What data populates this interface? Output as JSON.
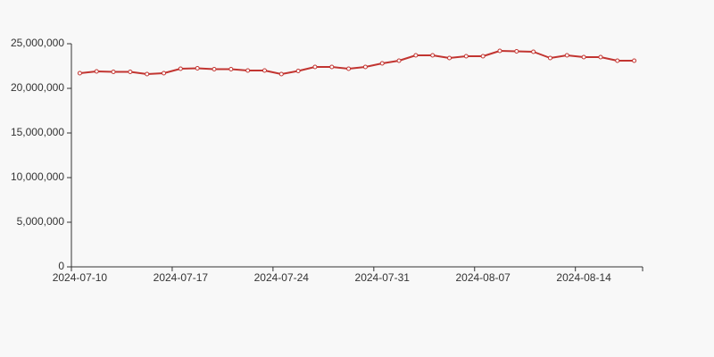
{
  "chart_data": {
    "type": "line",
    "categories": [
      "2024-07-10",
      null,
      null,
      null,
      null,
      null,
      "2024-07-17",
      null,
      null,
      null,
      null,
      null,
      "2024-07-24",
      null,
      null,
      null,
      null,
      null,
      "2024-07-31",
      null,
      null,
      null,
      null,
      null,
      "2024-08-07",
      null,
      null,
      null,
      null,
      null,
      "2024-08-14",
      null,
      null,
      null
    ],
    "series": [
      {
        "color": "#c23531",
        "values": [
          21700000,
          21900000,
          21850000,
          21850000,
          21600000,
          21700000,
          22200000,
          22250000,
          22150000,
          22150000,
          22000000,
          22000000,
          21600000,
          21950000,
          22400000,
          22400000,
          22200000,
          22400000,
          22800000,
          23100000,
          23700000,
          23700000,
          23400000,
          23600000,
          23600000,
          24200000,
          24150000,
          24100000,
          23400000,
          23700000,
          23500000,
          23500000,
          23100000,
          23100000
        ]
      }
    ],
    "ylim": [
      0,
      25000000
    ],
    "yticks": [
      0,
      {
        "value": 5000000,
        "label": "5,000,000"
      },
      {
        "value": 10000000,
        "label": "10,000,000"
      },
      {
        "value": 15000000,
        "label": "15,000,000"
      },
      {
        "value": 20000000,
        "label": "20,000,000"
      },
      {
        "value": 25000000,
        "label": "25,000,000"
      }
    ],
    "grid": false
  }
}
